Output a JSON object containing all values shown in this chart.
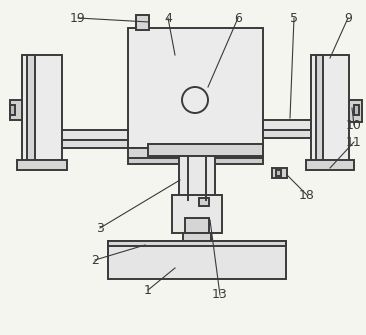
{
  "background_color": "#f5f5f0",
  "line_color": "#3a3a3a",
  "line_width": 1.4,
  "label_fontsize": 9
}
